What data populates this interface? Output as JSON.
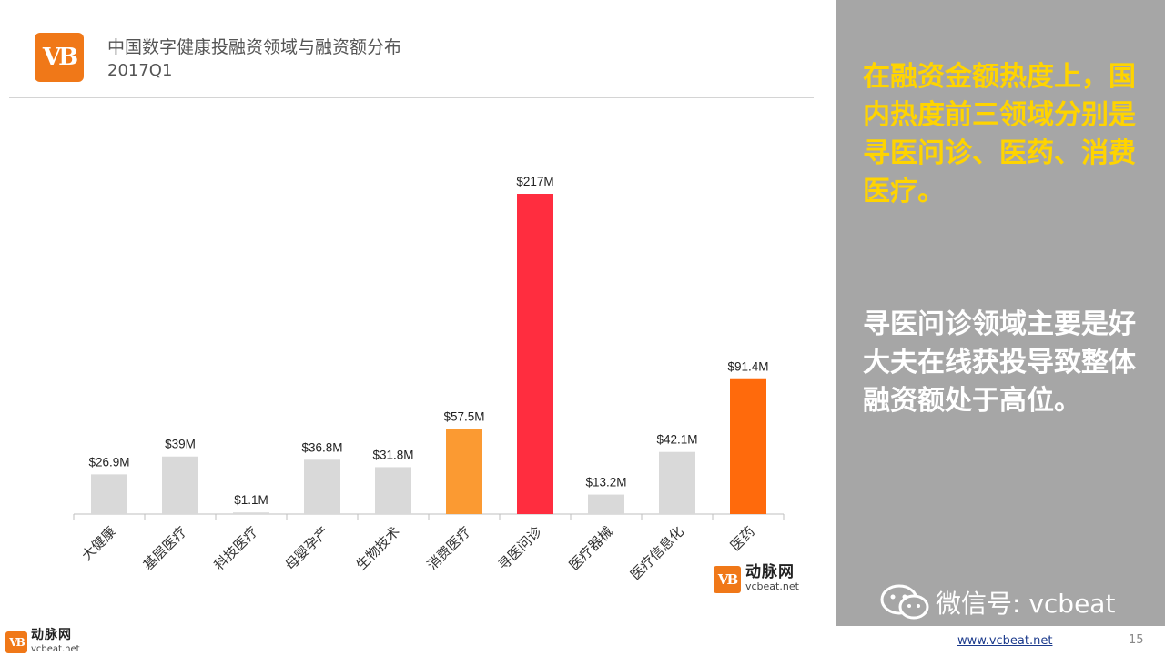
{
  "header": {
    "logo_text": "VB",
    "title": "中国数字健康投融资领域与融资额分布",
    "subtitle": "2017Q1"
  },
  "chart_data": {
    "type": "bar",
    "categories": [
      "大健康",
      "基层医疗",
      "科技医疗",
      "母婴孕产",
      "生物技术",
      "消费医疗",
      "寻医问诊",
      "医疗器械",
      "医疗信息化",
      "医药"
    ],
    "values": [
      26.9,
      39,
      1.1,
      36.8,
      31.8,
      57.5,
      217,
      13.2,
      42.1,
      91.4
    ],
    "value_labels": [
      "$26.9M",
      "$39M",
      "$1.1M",
      "$36.8M",
      "$31.8M",
      "$57.5M",
      "$217M",
      "$13.2M",
      "$42.1M",
      "$91.4M"
    ],
    "colors": [
      "#d9d9d9",
      "#d9d9d9",
      "#d9d9d9",
      "#d9d9d9",
      "#d9d9d9",
      "#fb9a32",
      "#ff2d3f",
      "#d9d9d9",
      "#d9d9d9",
      "#ff6a0c"
    ],
    "ylim": [
      0,
      217
    ],
    "grid": false,
    "title": "",
    "xlabel": "",
    "ylabel": ""
  },
  "watermark": {
    "logo_text": "VB",
    "name_cn": "动脉网",
    "name_en": "vcbeat.net"
  },
  "side_panel": {
    "highlight": "在融资金额热度上，国内热度前三领域分别是寻医问诊、医药、消费医疗。",
    "body": "寻医问诊领域主要是好大夫在线获投导致整体融资额处于高位。",
    "wechat": "微信号: vcbeat"
  },
  "footer": {
    "logo_text": "VB",
    "name_cn": "动脉网",
    "name_en": "vcbeat.net",
    "url": "www.vcbeat.net",
    "page": "15"
  },
  "colors": {
    "brand_orange": "#f07818",
    "highlight_yellow": "#ffd400",
    "panel_gray": "#a6a6a6"
  }
}
